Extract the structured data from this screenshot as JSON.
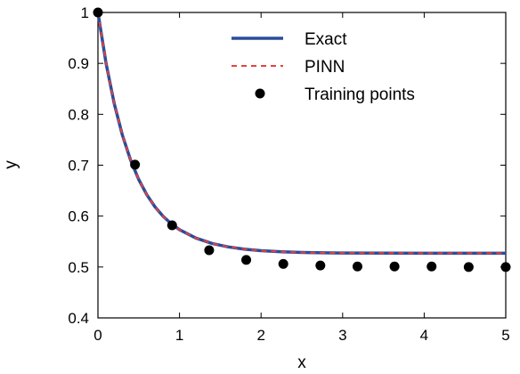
{
  "chart_data": {
    "type": "line",
    "xlabel": "x",
    "ylabel": "y",
    "xlim": [
      0,
      5
    ],
    "ylim": [
      0.4,
      1.0
    ],
    "xticks": [
      0,
      1,
      2,
      3,
      4,
      5
    ],
    "xtick_labels": [
      "0",
      "1",
      "2",
      "3",
      "4",
      "5"
    ],
    "yticks": [
      0.4,
      0.5,
      0.6,
      0.7,
      0.8,
      0.9,
      1.0
    ],
    "ytick_labels": [
      "0.4",
      "0.5",
      "0.6",
      "0.7",
      "0.8",
      "0.9",
      "1"
    ],
    "grid": false,
    "legend_position": "top-right",
    "series": [
      {
        "name": "Exact",
        "kind": "line",
        "color": "#2a4d9c",
        "dash": "solid",
        "x": [
          0,
          0.1,
          0.2,
          0.3,
          0.4,
          0.5,
          0.6,
          0.7,
          0.8,
          0.9,
          1.0,
          1.2,
          1.4,
          1.6,
          1.8,
          2.0,
          2.25,
          2.5,
          2.75,
          3.0,
          3.5,
          4.0,
          4.5,
          5.0
        ],
        "y": [
          1.0,
          0.8996,
          0.8208,
          0.7588,
          0.7101,
          0.6718,
          0.6417,
          0.618,
          0.5994,
          0.5848,
          0.5733,
          0.5569,
          0.5462,
          0.5394,
          0.5349,
          0.5321,
          0.5298,
          0.5285,
          0.5279,
          0.5275,
          0.5272,
          0.5271,
          0.527,
          0.527
        ]
      },
      {
        "name": "PINN",
        "kind": "line",
        "color": "#e8413c",
        "dash": "dashed",
        "x": [
          0,
          0.1,
          0.2,
          0.3,
          0.4,
          0.5,
          0.6,
          0.7,
          0.8,
          0.9,
          1.0,
          1.2,
          1.4,
          1.6,
          1.8,
          2.0,
          2.25,
          2.5,
          2.75,
          3.0,
          3.5,
          4.0,
          4.5,
          5.0
        ],
        "y": [
          1.0,
          0.8996,
          0.8208,
          0.7588,
          0.7101,
          0.6718,
          0.6417,
          0.618,
          0.5994,
          0.5848,
          0.5733,
          0.5569,
          0.5462,
          0.5394,
          0.5349,
          0.5321,
          0.5298,
          0.5285,
          0.5279,
          0.5275,
          0.5272,
          0.5271,
          0.527,
          0.527
        ]
      },
      {
        "name": "Training points",
        "kind": "scatter",
        "color": "#000000",
        "x": [
          0,
          0.4545,
          0.9091,
          1.3636,
          1.8182,
          2.2727,
          2.7273,
          3.1818,
          3.6364,
          4.0909,
          4.5455,
          5.0
        ],
        "y": [
          1.0,
          0.701,
          0.582,
          0.533,
          0.514,
          0.506,
          0.503,
          0.501,
          0.501,
          0.501,
          0.5,
          0.5
        ]
      }
    ]
  }
}
